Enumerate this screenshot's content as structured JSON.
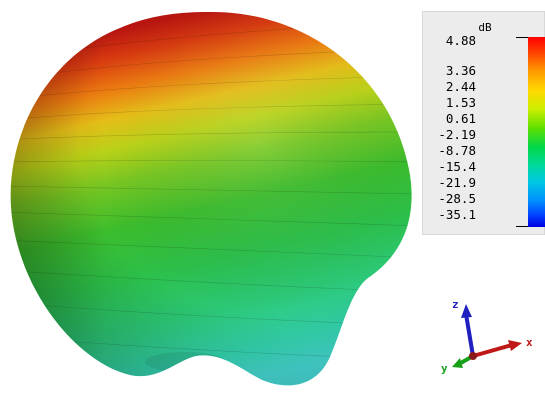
{
  "legend": {
    "unit": "dB",
    "ticks": [
      "4.88",
      "3.36",
      "2.44",
      "1.53",
      "0.61",
      "-2.19",
      "-8.78",
      "-15.4",
      "-21.9",
      "-28.5",
      "-35.1"
    ]
  },
  "axes": {
    "x_label": "x",
    "y_label": "y",
    "z_label": "z"
  },
  "colors": {
    "max": "#d01010",
    "mid": "#30c020",
    "min": "#40d8e0",
    "x_axis": "#c01818",
    "y_axis": "#18a018",
    "z_axis": "#2020c0"
  }
}
